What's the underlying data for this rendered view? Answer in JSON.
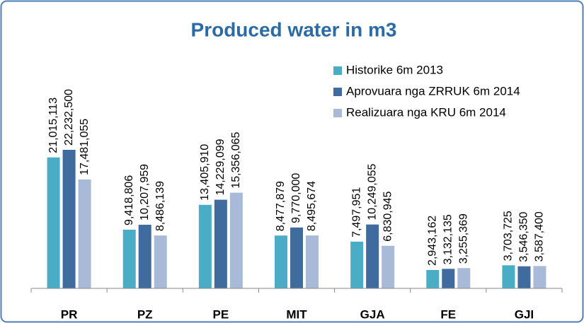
{
  "chart_data": {
    "type": "bar",
    "title": "Produced water in m3",
    "categories": [
      "PR",
      "PZ",
      "PE",
      "MIT",
      "GJA",
      "FE",
      "GJI"
    ],
    "series": [
      {
        "name": "Historike 6m 2013",
        "color": "#4bacc6",
        "values": [
          21015113,
          9418806,
          13405910,
          8477879,
          7497951,
          2943162,
          3703725
        ],
        "value_labels": [
          "21,015,113",
          "9,418,806",
          "13,405,910",
          "8,477,879",
          "7,497,951",
          "2,943,162",
          "3,703,725"
        ]
      },
      {
        "name": "Aprovuara nga ZRRUK 6m 2014",
        "color": "#3f6b9e",
        "values": [
          22232500,
          10207959,
          14229099,
          9770000,
          10249055,
          3132135,
          3546350
        ],
        "value_labels": [
          "22,232,500",
          "10,207,959",
          "14,229,099",
          "9,770,000",
          "10,249,055",
          "3,132,135",
          "3,546,350"
        ]
      },
      {
        "name": "Realizuara nga KRU 6m 2014",
        "color": "#a9bad9",
        "values": [
          17481055,
          8486139,
          15356065,
          8495674,
          6830945,
          3255369,
          3587400
        ],
        "value_labels": [
          "17,481,055",
          "8,486,139",
          "15,356,065",
          "8,495,674",
          "6,830,945",
          "3,255,369",
          "3,587,400"
        ]
      }
    ],
    "legend": "top-right"
  }
}
